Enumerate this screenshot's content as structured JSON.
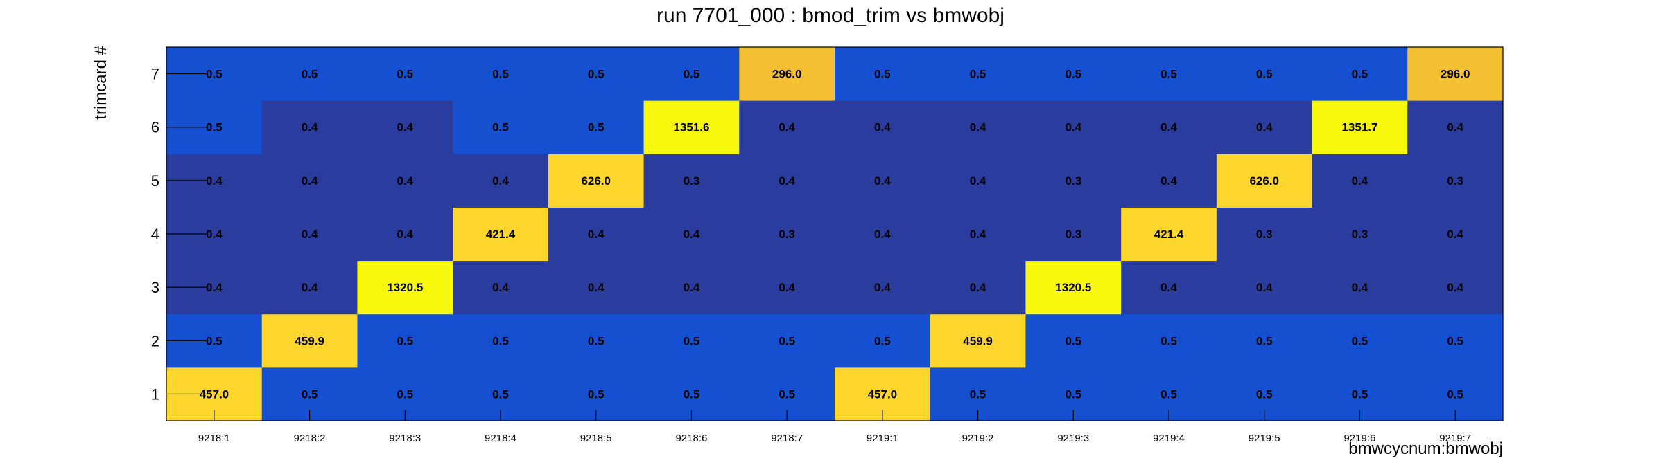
{
  "chart_data": {
    "type": "heatmap",
    "title": "run 7701_000 : bmod_trim vs bmwobj",
    "xlabel": "bmwcycnum:bmwobj",
    "ylabel": "trimcard #",
    "x_categories": [
      "9218:1",
      "9218:2",
      "9218:3",
      "9218:4",
      "9218:5",
      "9218:6",
      "9218:7",
      "9219:1",
      "9219:2",
      "9219:3",
      "9219:4",
      "9219:5",
      "9219:6",
      "9219:7"
    ],
    "y_categories": [
      "1",
      "2",
      "3",
      "4",
      "5",
      "6",
      "7"
    ],
    "values": [
      [
        "457.0",
        "0.5",
        "0.5",
        "0.5",
        "0.5",
        "0.5",
        "0.5",
        "457.0",
        "0.5",
        "0.5",
        "0.5",
        "0.5",
        "0.5",
        "0.5"
      ],
      [
        "0.5",
        "459.9",
        "0.5",
        "0.5",
        "0.5",
        "0.5",
        "0.5",
        "0.5",
        "459.9",
        "0.5",
        "0.5",
        "0.5",
        "0.5",
        "0.5"
      ],
      [
        "0.4",
        "0.4",
        "1320.5",
        "0.4",
        "0.4",
        "0.4",
        "0.4",
        "0.4",
        "0.4",
        "1320.5",
        "0.4",
        "0.4",
        "0.4",
        "0.4"
      ],
      [
        "0.4",
        "0.4",
        "0.4",
        "421.4",
        "0.4",
        "0.4",
        "0.3",
        "0.4",
        "0.4",
        "0.3",
        "421.4",
        "0.3",
        "0.3",
        "0.4"
      ],
      [
        "0.4",
        "0.4",
        "0.4",
        "0.4",
        "626.0",
        "0.3",
        "0.4",
        "0.4",
        "0.4",
        "0.3",
        "0.4",
        "626.0",
        "0.4",
        "0.3"
      ],
      [
        "0.5",
        "0.4",
        "0.4",
        "0.5",
        "0.5",
        "1351.6",
        "0.4",
        "0.4",
        "0.4",
        "0.4",
        "0.4",
        "0.4",
        "1351.7",
        "0.4"
      ],
      [
        "0.5",
        "0.5",
        "0.5",
        "0.5",
        "0.5",
        "0.5",
        "296.0",
        "0.5",
        "0.5",
        "0.5",
        "0.5",
        "0.5",
        "0.5",
        "296.0"
      ]
    ],
    "color_ranges": [
      {
        "max": 0.49,
        "color": "#2a3c9e"
      },
      {
        "max": 1,
        "color": "#1550d0"
      },
      {
        "max": 350,
        "color": "#f3c034"
      },
      {
        "max": 700,
        "color": "#fcd62c"
      },
      {
        "max": 100000,
        "color": "#f8f80c"
      }
    ],
    "grid": false,
    "legend": "none"
  }
}
